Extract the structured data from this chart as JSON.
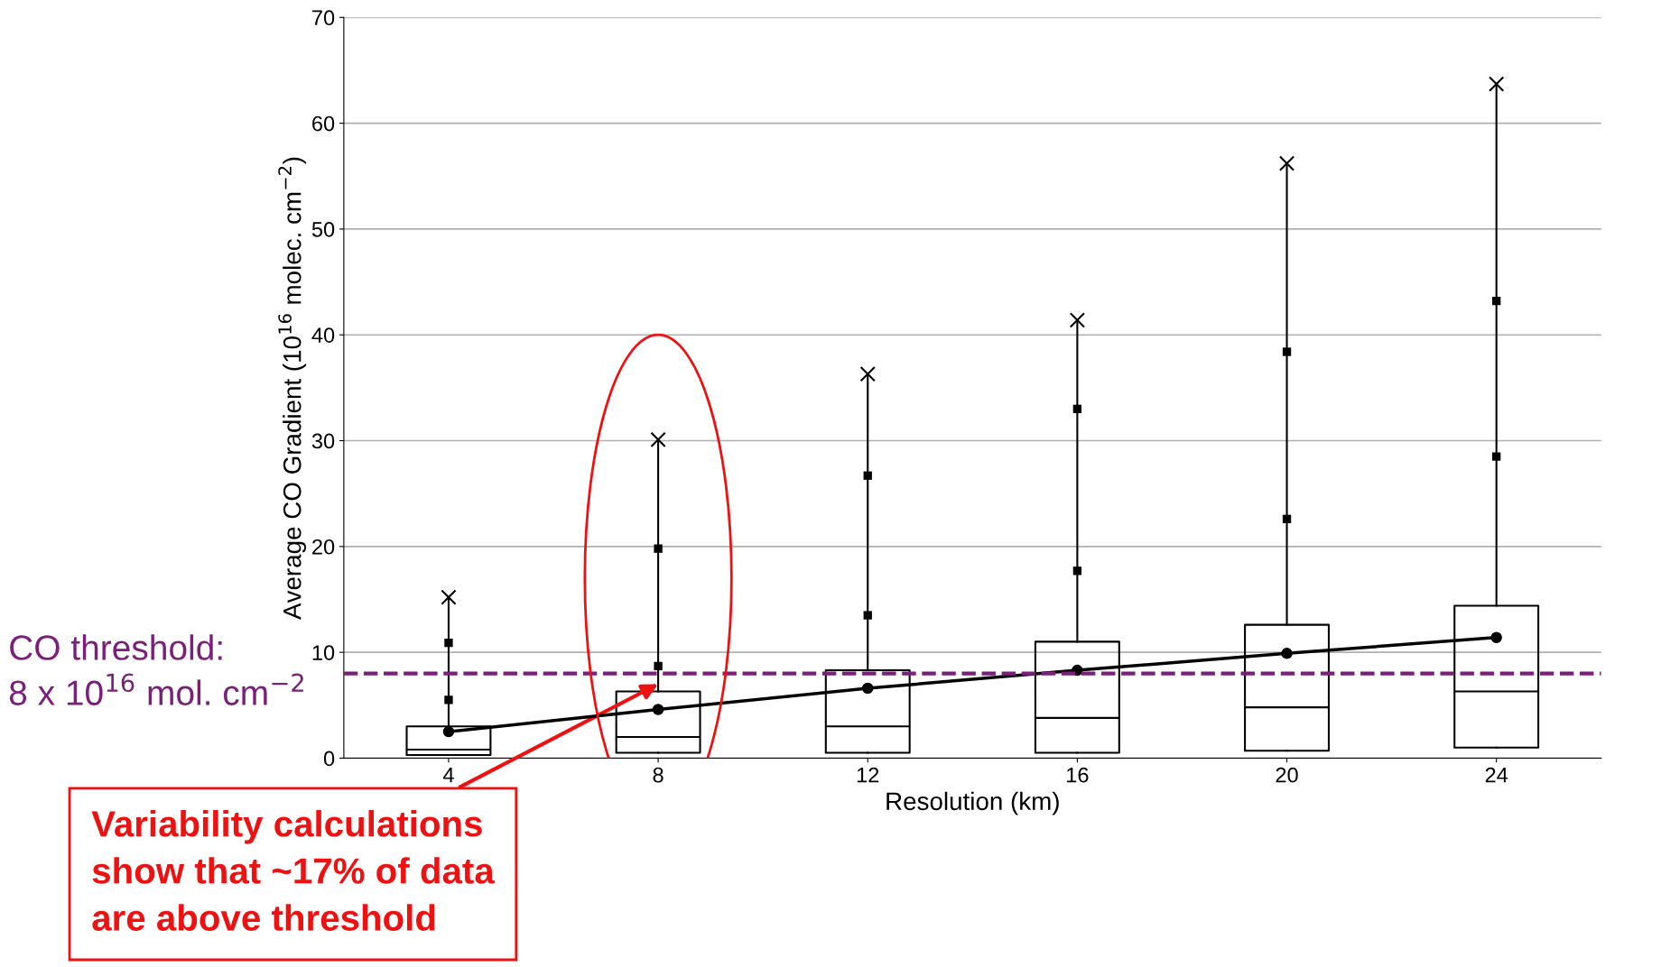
{
  "chart_data": {
    "type": "box",
    "xlabel": "Resolution (km)",
    "ylabel": "Average CO Gradient (10$^{16}$ molec. cm$^{−2}$)",
    "categories": [
      "4",
      "8",
      "12",
      "16",
      "20",
      "24"
    ],
    "boxes": [
      {
        "low": 0.3,
        "q1": 0.3,
        "median": 0.8,
        "q3": 3.0,
        "high": 15.2
      },
      {
        "low": 0.5,
        "q1": 0.5,
        "median": 2.0,
        "q3": 6.3,
        "high": 30.1
      },
      {
        "low": 0.5,
        "q1": 0.5,
        "median": 3.0,
        "q3": 8.3,
        "high": 36.3
      },
      {
        "low": 0.5,
        "q1": 0.5,
        "median": 3.8,
        "q3": 11.0,
        "high": 41.4
      },
      {
        "low": 0.7,
        "q1": 0.7,
        "median": 4.8,
        "q3": 12.6,
        "high": 56.2
      },
      {
        "low": 1.0,
        "q1": 1.0,
        "median": 6.3,
        "q3": 14.4,
        "high": 63.7
      }
    ],
    "series": [
      {
        "type": "scatter",
        "color": "#000000",
        "marker": "square",
        "x": [
          "4",
          "8",
          "12",
          "16",
          "20",
          "24"
        ],
        "values": [
          5.5,
          8.7,
          13.5,
          17.7,
          22.6,
          28.5
        ]
      },
      {
        "type": "scatter",
        "color": "#000000",
        "marker": "square",
        "x": [
          "4",
          "8",
          "12",
          "16",
          "20",
          "24"
        ],
        "values": [
          10.9,
          19.8,
          26.7,
          33.0,
          38.4,
          43.2
        ]
      },
      {
        "type": "scatter",
        "color": "#000000",
        "marker": "cross",
        "x": [
          "4",
          "8",
          "12",
          "16",
          "20",
          "24"
        ],
        "values": [
          15.2,
          30.1,
          36.3,
          41.4,
          56.2,
          63.7
        ]
      },
      {
        "type": "line",
        "color": "#000000",
        "marker": "circle",
        "line_style": "solid",
        "x": [
          "4",
          "8",
          "12",
          "16",
          "20",
          "24"
        ],
        "values": [
          2.5,
          4.6,
          6.6,
          8.3,
          9.9,
          11.4
        ]
      }
    ],
    "ylim": [
      0,
      70
    ],
    "yticks": [
      0,
      10,
      20,
      30,
      40,
      50,
      60,
      70
    ],
    "grid": "y",
    "legend": false,
    "ref_lines": [
      {
        "axis": "y",
        "value": 8,
        "label": "CO threshold:\n8 x 10$^{16}$ mol. cm$^{−2}$",
        "color": "#7b1f7b",
        "line_style": "dashed"
      }
    ],
    "annotations": [
      {
        "text": "Variability calculations\nshow that ~17% of data\nare above threshold",
        "x": "8",
        "y": 7.0
      }
    ]
  }
}
